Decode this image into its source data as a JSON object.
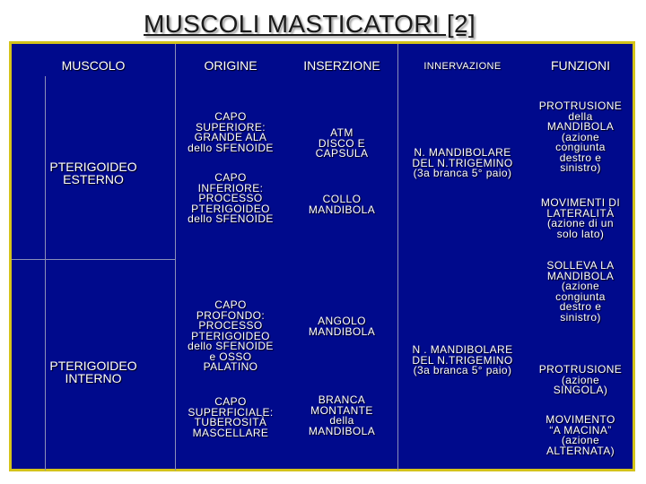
{
  "title": "MUSCOLI MASTICATORI [2]",
  "headers": {
    "muscolo": "MUSCOLO",
    "origine": "ORIGINE",
    "inserzione": "INSERZIONE",
    "innervazione": "INNERVAZIONE",
    "funzioni": "FUNZIONI"
  },
  "esterno": {
    "name": [
      "PTERIGOIDEO",
      "ESTERNO"
    ],
    "origin_superior": [
      "CAPO",
      "SUPERIORE:",
      "GRANDE ALA",
      "dello SFENOIDE"
    ],
    "origin_inferior": [
      "CAPO",
      "INFERIORE:",
      "PROCESSO",
      "PTERIGOIDEO",
      "dello SFENOIDE"
    ],
    "insertion_superior": [
      "ATM",
      "DISCO E",
      "CAPSULA"
    ],
    "insertion_inferior": [
      "COLLO",
      "MANDIBOLA"
    ],
    "innervation": [
      "N. MANDIBOLARE",
      "DEL N.TRIGEMINO",
      "(3a branca 5° paio)"
    ],
    "function_1": [
      "PROTRUSIONE",
      "della",
      "MANDIBOLA",
      "(azione",
      "congiunta",
      "destro e",
      "sinistro)"
    ],
    "function_2": [
      "MOVIMENTI DI",
      "LATERALITÀ",
      "(azione di un",
      "solo lato)"
    ]
  },
  "interno": {
    "name": [
      "PTERIGOIDEO",
      "INTERNO"
    ],
    "origin_deep": [
      "CAPO",
      "PROFONDO:",
      "PROCESSO",
      "PTERIGOIDEO",
      "dello SFENOIDE",
      "e OSSO",
      "PALATINO"
    ],
    "origin_superficial": [
      "CAPO",
      "SUPERFICIALE:",
      "TUBEROSITÀ",
      "MASCELLARE"
    ],
    "insertion_1": [
      "ANGOLO",
      "MANDIBOLA"
    ],
    "insertion_2": [
      "BRANCA",
      "MONTANTE",
      "della",
      "MANDIBOLA"
    ],
    "innervation": [
      "N . MANDIBOLARE",
      "DEL N.TRIGEMINO",
      "(3a branca 5° paio)"
    ],
    "function_1": [
      "SOLLEVA LA",
      "MANDIBOLA",
      "(azione",
      "congiunta",
      "destro e",
      "sinistro)"
    ],
    "function_2": [
      "PROTRUSIONE",
      "(azione",
      "SINGOLA)"
    ],
    "function_3": [
      "MOVIMENTO",
      "“A MACINA”",
      "(azione",
      "ALTERNATA)"
    ]
  },
  "colors": {
    "table_background": "#000a8c",
    "table_border": "#d4c31a",
    "text": "#ffffff"
  }
}
